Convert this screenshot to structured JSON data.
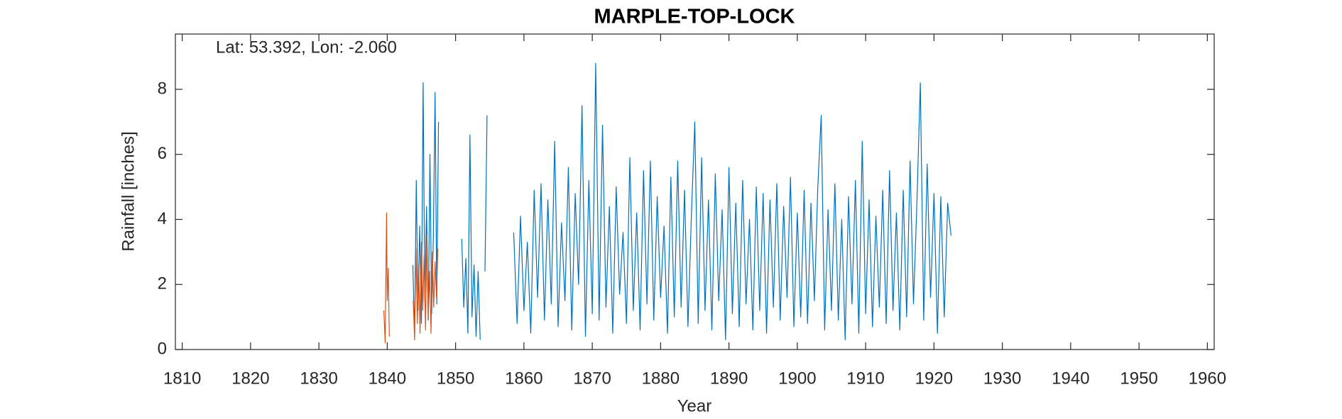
{
  "chart_data": {
    "type": "line",
    "title": "MARPLE-TOP-LOCK",
    "annotation": "Lat: 53.392, Lon: -2.060",
    "x_label": "Year",
    "y_label": "Rainfall [inches]",
    "xlim": [
      1809,
      1961
    ],
    "xticks": [
      1810,
      1820,
      1830,
      1840,
      1850,
      1860,
      1870,
      1880,
      1890,
      1900,
      1910,
      1920,
      1930,
      1940,
      1950,
      1960
    ],
    "ylim": [
      0,
      9.7
    ],
    "yticks": [
      0,
      2,
      4,
      6,
      8
    ],
    "grid": false,
    "series": [
      {
        "color": "#0072bd",
        "x": [
          1843.75,
          1844,
          1844.25,
          1844.5,
          1844.75,
          1845,
          1845.25,
          1845.5,
          1845.75,
          1846,
          1846.25,
          1846.5,
          1846.75,
          1847,
          1847.25,
          1847.5,
          1849,
          1850.9,
          1851.2,
          1851.5,
          1851.8,
          1852.1,
          1852.4,
          1852.7,
          1853,
          1853.3,
          1853.6,
          1854,
          1854.3,
          1854.6,
          1856,
          1858.5,
          1859,
          1859.5,
          1860,
          1860.5,
          1861,
          1861.5,
          1862,
          1862.5,
          1863,
          1863.5,
          1864,
          1864.5,
          1865,
          1865.5,
          1866,
          1866.5,
          1867,
          1867.5,
          1868,
          1868.5,
          1869,
          1869.5,
          1870,
          1870.5,
          1871,
          1871.5,
          1872,
          1872.5,
          1873,
          1873.5,
          1874,
          1874.5,
          1875,
          1875.5,
          1876,
          1876.5,
          1877,
          1877.5,
          1878,
          1878.5,
          1879,
          1879.5,
          1880,
          1880.5,
          1881,
          1881.5,
          1882,
          1882.5,
          1883,
          1883.5,
          1884,
          1884.5,
          1885,
          1885.5,
          1886,
          1886.5,
          1887,
          1887.5,
          1888,
          1888.5,
          1889,
          1889.5,
          1890,
          1890.5,
          1891,
          1891.5,
          1892,
          1892.5,
          1893,
          1893.5,
          1894,
          1894.5,
          1895,
          1895.5,
          1896,
          1896.5,
          1897,
          1897.5,
          1898,
          1898.5,
          1899,
          1899.5,
          1900,
          1900.5,
          1901,
          1901.5,
          1902,
          1902.5,
          1903,
          1903.5,
          1904,
          1904.5,
          1905,
          1905.5,
          1906,
          1906.5,
          1907,
          1907.5,
          1908,
          1908.5,
          1909,
          1909.5,
          1910,
          1910.5,
          1911,
          1911.5,
          1912,
          1912.5,
          1913,
          1913.5,
          1914,
          1914.5,
          1915,
          1915.5,
          1916,
          1916.5,
          1917,
          1917.5,
          1918,
          1918.5,
          1919,
          1919.5,
          1920,
          1920.5,
          1921,
          1921.5,
          1922,
          1922.5
        ],
        "values": [
          2.6,
          0.4,
          5.2,
          1.2,
          3.8,
          0.8,
          8.2,
          1.5,
          4.4,
          0.9,
          6.0,
          1.1,
          3.5,
          7.9,
          1.4,
          7.0,
          null,
          3.4,
          1.3,
          2.8,
          0.5,
          6.6,
          1.0,
          2.6,
          0.4,
          2.4,
          0.3,
          null,
          2.4,
          7.2,
          null,
          3.6,
          0.8,
          4.1,
          1.2,
          3.3,
          0.5,
          4.9,
          1.6,
          5.1,
          0.9,
          4.6,
          1.4,
          6.4,
          0.7,
          3.9,
          1.5,
          5.6,
          0.6,
          4.8,
          2.0,
          7.5,
          0.4,
          5.2,
          1.1,
          8.8,
          0.9,
          6.9,
          1.3,
          4.4,
          0.5,
          5.0,
          1.7,
          3.6,
          0.8,
          5.9,
          1.2,
          4.2,
          0.6,
          5.5,
          1.4,
          5.8,
          0.9,
          4.7,
          1.6,
          3.8,
          0.5,
          5.3,
          1.0,
          5.8,
          1.3,
          4.9,
          0.7,
          4.1,
          7.0,
          0.8,
          5.9,
          1.2,
          4.6,
          0.6,
          5.4,
          1.5,
          4.3,
          0.3,
          5.6,
          1.1,
          4.5,
          0.7,
          5.2,
          1.4,
          4.0,
          0.6,
          5.0,
          1.2,
          4.8,
          0.5,
          4.6,
          1.3,
          5.1,
          0.9,
          4.4,
          1.6,
          5.3,
          0.7,
          4.2,
          1.0,
          4.9,
          0.8,
          4.5,
          1.5,
          5.0,
          7.2,
          0.6,
          4.3,
          1.2,
          5.1,
          0.9,
          4.0,
          0.3,
          4.7,
          1.4,
          5.2,
          0.5,
          6.4,
          1.1,
          4.6,
          0.7,
          4.1,
          1.3,
          4.9,
          0.8,
          5.5,
          1.2,
          4.2,
          0.6,
          4.9,
          1.0,
          5.8,
          1.4,
          4.5,
          8.2,
          0.9,
          5.7,
          1.6,
          4.8,
          0.5,
          4.7,
          1.0,
          4.5,
          3.5
        ]
      },
      {
        "color": "#d95319",
        "x": [
          1839.5,
          1839.7,
          1839.9,
          1840,
          1840.15,
          1840.3,
          1842,
          1843.8,
          1844,
          1844.2,
          1844.4,
          1844.6,
          1844.8,
          1845,
          1845.2,
          1845.4,
          1845.6,
          1845.8,
          1846,
          1846.2,
          1846.4,
          1846.6,
          1846.8,
          1847,
          1847.2,
          1847.4
        ],
        "values": [
          1.2,
          0.2,
          4.2,
          1.5,
          2.5,
          0.4,
          null,
          1.5,
          0.3,
          3.1,
          0.8,
          2.6,
          0.5,
          3.3,
          1.2,
          2.9,
          0.6,
          3.5,
          1.0,
          2.4,
          0.5,
          3.0,
          1.3,
          2.7,
          1.6,
          3.1
        ]
      }
    ]
  }
}
